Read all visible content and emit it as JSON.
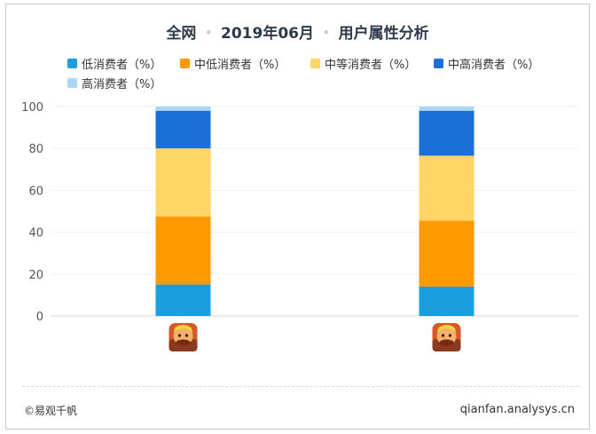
{
  "header": {
    "scope": "全网",
    "period": "2019年06月",
    "metric": "用户属性分析"
  },
  "footer": {
    "copyright": "©易观千帆",
    "site": "qianfan.analysys.cn"
  },
  "icons": [
    "game-app-icon",
    "game-app-icon"
  ],
  "chart_data": {
    "type": "bar",
    "stacked": true,
    "categories": [
      "",
      ""
    ],
    "ylim": [
      0,
      100
    ],
    "yticks": [
      "0",
      "20",
      "40",
      "60",
      "80",
      "100"
    ],
    "grid": true,
    "legend_position": "top",
    "series": [
      {
        "name": "低消费者（%）",
        "color": "#1a9ee0",
        "values": [
          15,
          14
        ]
      },
      {
        "name": "中低消费者（%）",
        "color": "#ff9900",
        "values": [
          32.5,
          31.5
        ]
      },
      {
        "name": "中等消费者（%）",
        "color": "#ffd666",
        "values": [
          32.5,
          31
        ]
      },
      {
        "name": "中高消费者（%）",
        "color": "#1c6fd6",
        "values": [
          18,
          21.5
        ]
      },
      {
        "name": "高消费者（%）",
        "color": "#a9d6f5",
        "values": [
          2,
          2
        ]
      }
    ]
  }
}
